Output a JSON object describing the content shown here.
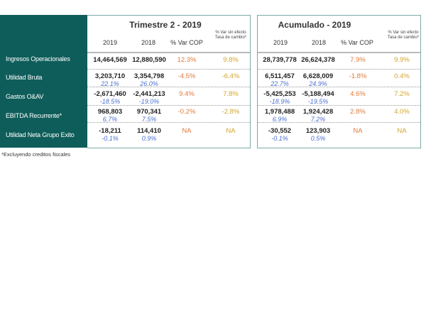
{
  "rows": [
    "Ingresos Operacionales",
    "Utilidad Bruta",
    "Gastos O&AV",
    "EBITDA Recurrente*",
    "Utilidad Neta Grupo Exito"
  ],
  "footnote": "*Excluyendo creditos fiscales",
  "colors": {
    "sidebar": "#0e5d5a",
    "var_cop": "#e07a3a",
    "var_sin_efecto": "#d4a52c",
    "margin": "#4a6fd0"
  },
  "tables": [
    {
      "title": "Trimestre 2 - 2019",
      "col_2019": "2019",
      "col_2018": "2018",
      "col_var": "% Var COP",
      "col_sin_1": "% Var sin efecto",
      "col_sin_2": "Tasa de cambio*",
      "rows": [
        {
          "v2019": "14,464,569",
          "p2019": "",
          "v2018": "12,880,590",
          "p2018": "",
          "var": "12.3%",
          "sin": "9.8%"
        },
        {
          "v2019": "3,203,710",
          "p2019": "22.1%",
          "v2018": "3,354,798",
          "p2018": "26.0%",
          "var": "-4.5%",
          "sin": "-6.4%"
        },
        {
          "v2019": "-2,671,460",
          "p2019": "-18.5%",
          "v2018": "-2,441,213",
          "p2018": "-19.0%",
          "var": "9.4%",
          "sin": "7.8%"
        },
        {
          "v2019": "968,803",
          "p2019": "6.7%",
          "v2018": "970,341",
          "p2018": "7.5%",
          "var": "-0.2%",
          "sin": "-2.8%"
        },
        {
          "v2019": "-18,211",
          "p2019": "-0.1%",
          "v2018": "114,410",
          "p2018": "0.9%",
          "var": "NA",
          "sin": "NA"
        }
      ]
    },
    {
      "title": "Acumulado - 2019",
      "col_2019": "2019",
      "col_2018": "2018",
      "col_var": "% Var COP",
      "col_sin_1": "% Var sin efecto",
      "col_sin_2": "Tasa de cambio*",
      "rows": [
        {
          "v2019": "28,739,778",
          "p2019": "",
          "v2018": "26,624,378",
          "p2018": "",
          "var": "7.9%",
          "sin": "9.9%"
        },
        {
          "v2019": "6,511,457",
          "p2019": "22.7%",
          "v2018": "6,628,009",
          "p2018": "24.9%",
          "var": "-1.8%",
          "sin": "0.4%"
        },
        {
          "v2019": "-5,425,253",
          "p2019": "-18.9%",
          "v2018": "-5,188,494",
          "p2018": "-19.5%",
          "var": "4.6%",
          "sin": "7.2%"
        },
        {
          "v2019": "1,978,488",
          "p2019": "6.9%",
          "v2018": "1,924,428",
          "p2018": "7.2%",
          "var": "2.8%",
          "sin": "4.0%"
        },
        {
          "v2019": "-30,552",
          "p2019": "-0.1%",
          "v2018": "123,903",
          "p2018": "0.5%",
          "var": "NA",
          "sin": "NA"
        }
      ]
    }
  ]
}
